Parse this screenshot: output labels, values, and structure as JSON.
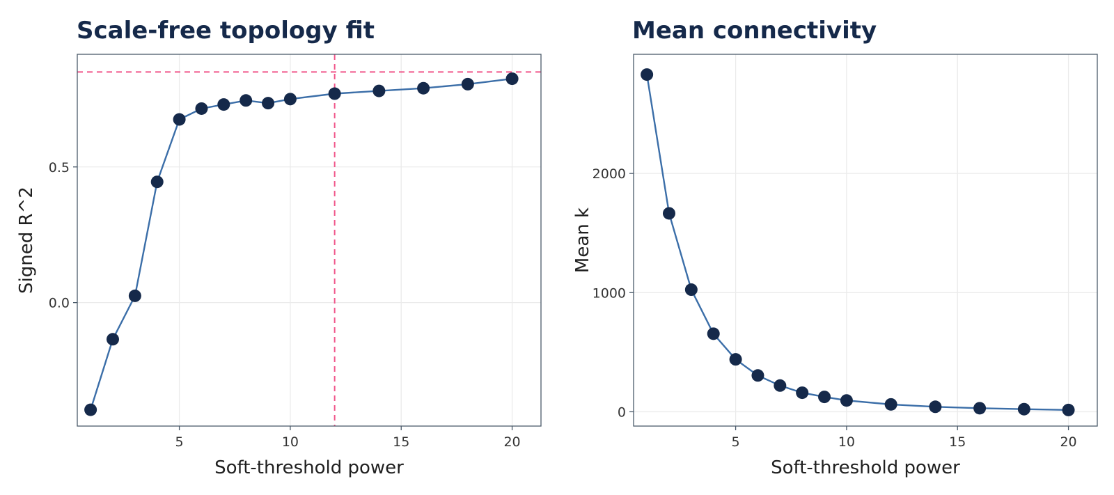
{
  "chart_data": [
    {
      "type": "line",
      "title": "Scale-free topology fit",
      "xlabel": "Soft-threshold power",
      "ylabel": "Signed R^2",
      "xlim": [
        0.4,
        21.3
      ],
      "ylim": [
        -0.455,
        0.915
      ],
      "xticks": [
        5,
        10,
        15,
        20
      ],
      "xtick_labels": [
        "5",
        "10",
        "15",
        "20"
      ],
      "yticks": [
        0.0,
        0.5
      ],
      "ytick_labels": [
        "0.0",
        "0.5"
      ],
      "grid": true,
      "reference_lines": {
        "h": 0.85,
        "v": 12,
        "color": "#f0568a",
        "style": "dashed"
      },
      "line_color": "#3b6ea8",
      "point_color": "#15294a",
      "x": [
        1,
        2,
        3,
        4,
        5,
        6,
        7,
        8,
        9,
        10,
        12,
        14,
        16,
        18,
        20
      ],
      "y": [
        -0.395,
        -0.135,
        0.025,
        0.445,
        0.675,
        0.715,
        0.73,
        0.745,
        0.735,
        0.75,
        0.77,
        0.78,
        0.79,
        0.805,
        0.825
      ]
    },
    {
      "type": "line",
      "title": "Mean connectivity",
      "xlabel": "Soft-threshold power",
      "ylabel": "Mean k",
      "xlim": [
        0.4,
        21.3
      ],
      "ylim": [
        -120,
        3000
      ],
      "xticks": [
        5,
        10,
        15,
        20
      ],
      "xtick_labels": [
        "5",
        "10",
        "15",
        "20"
      ],
      "yticks": [
        0,
        1000,
        2000
      ],
      "ytick_labels": [
        "0",
        "1000",
        "2000"
      ],
      "grid": true,
      "line_color": "#3b6ea8",
      "point_color": "#15294a",
      "x": [
        1,
        2,
        3,
        4,
        5,
        6,
        7,
        8,
        9,
        10,
        12,
        14,
        16,
        18,
        20
      ],
      "y": [
        2830,
        1665,
        1025,
        655,
        440,
        305,
        220,
        160,
        125,
        95,
        62,
        42,
        30,
        22,
        15
      ]
    }
  ]
}
